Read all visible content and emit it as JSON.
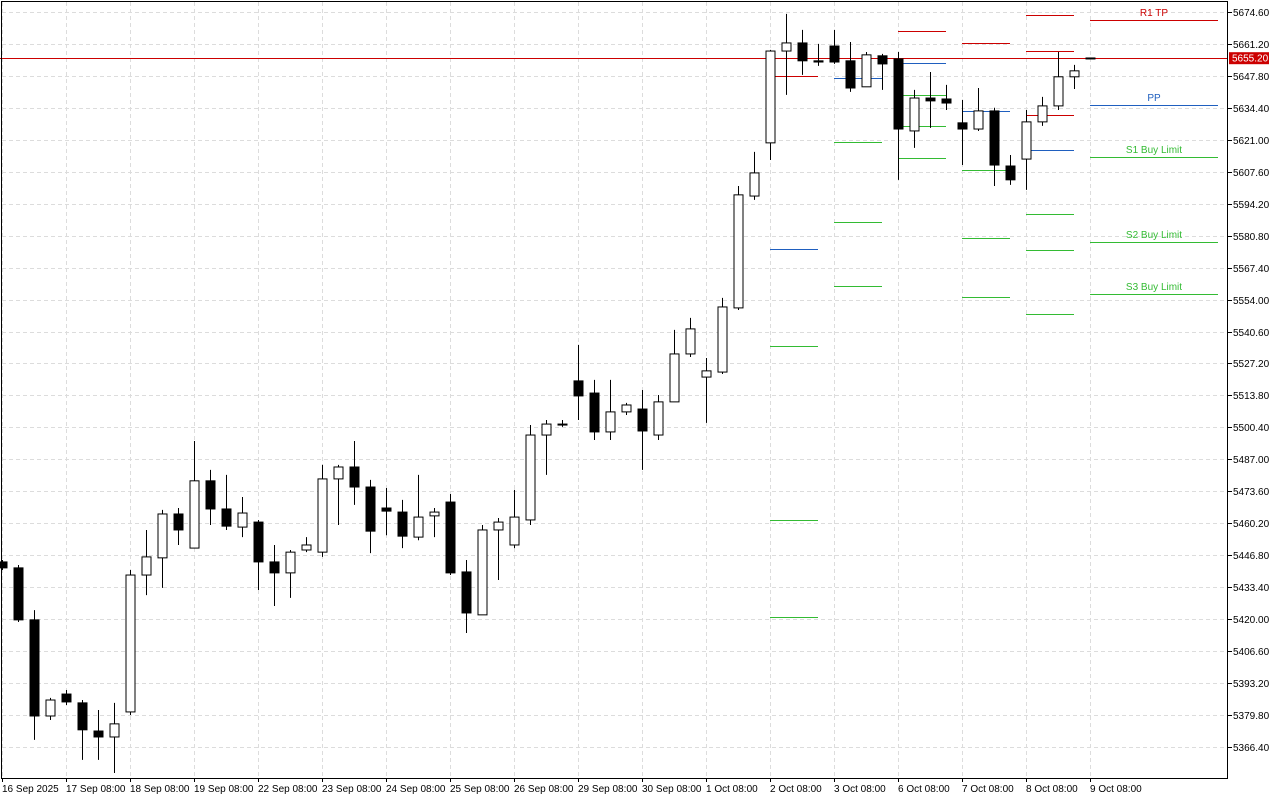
{
  "chart_data": {
    "type": "candlestick",
    "categories": [
      "16 Sep 2025",
      null,
      null,
      null,
      "17 Sep 08:00",
      null,
      null,
      null,
      "18 Sep 08:00",
      null,
      null,
      null,
      "19 Sep 08:00",
      null,
      null,
      null,
      "22 Sep 08:00",
      null,
      null,
      null,
      "23 Sep 08:00",
      null,
      null,
      null,
      "24 Sep 08:00",
      null,
      null,
      null,
      "25 Sep 08:00",
      null,
      null,
      null,
      "26 Sep 08:00",
      null,
      null,
      null,
      "29 Sep 08:00",
      null,
      null,
      null,
      "30 Sep 08:00",
      null,
      null,
      null,
      "1 Oct 08:00",
      null,
      null,
      null,
      "2 Oct 08:00",
      null,
      null,
      null,
      "3 Oct 08:00",
      null,
      null,
      null,
      "6 Oct 08:00",
      null,
      null,
      null,
      "7 Oct 08:00",
      null,
      null,
      null,
      "8 Oct 08:00",
      null,
      null,
      null,
      "9 Oct 08:00"
    ],
    "open": [
      5444.0,
      5441.5,
      5419.7,
      5379.4,
      5388.6,
      5384.9,
      5373.1,
      5370.6,
      5381.1,
      5438.5,
      5445.7,
      5464.1,
      5449.8,
      5478.0,
      5466.2,
      5458.6,
      5460.7,
      5444.0,
      5439.4,
      5449.0,
      5448.1,
      5478.8,
      5483.8,
      5475.4,
      5466.6,
      5464.9,
      5454.4,
      5463.3,
      5469.1,
      5439.8,
      5421.8,
      5457.4,
      5451.1,
      5461.6,
      5497.2,
      5501.4,
      5519.9,
      5514.8,
      5498.5,
      5506.9,
      5508.1,
      5497.2,
      5511.1,
      5531.2,
      5521.5,
      5523.6,
      5550.5,
      5597.4,
      5619.7,
      5658.2,
      5661.6,
      5654.1,
      5660.3,
      5654.1,
      5643.2,
      5656.2,
      5654.9,
      5624.7,
      5638.5,
      5638.1,
      5628.1,
      5625.5,
      5633.1,
      5610.0,
      5612.9,
      5628.5,
      5635.2,
      5647.4,
      5655.3
    ],
    "high": [
      5444.8,
      5442.7,
      5423.8,
      5387.0,
      5390.3,
      5386.1,
      5381.9,
      5384.9,
      5440.6,
      5457.4,
      5465.8,
      5466.6,
      5494.7,
      5482.6,
      5480.5,
      5471.2,
      5461.6,
      5451.1,
      5449.0,
      5454.4,
      5484.7,
      5484.7,
      5494.7,
      5478.4,
      5475.0,
      5470.0,
      5480.5,
      5466.6,
      5472.5,
      5444.8,
      5459.5,
      5462.4,
      5474.2,
      5501.4,
      5503.5,
      5503.5,
      5535.0,
      5520.3,
      5520.3,
      5510.7,
      5516.1,
      5514.0,
      5541.3,
      5546.3,
      5529.5,
      5554.7,
      5601.6,
      5615.9,
      5658.7,
      5673.8,
      5667.1,
      5661.2,
      5667.1,
      5662.0,
      5657.8,
      5657.0,
      5657.8,
      5641.9,
      5649.4,
      5644.0,
      5637.7,
      5642.7,
      5634.4,
      5614.6,
      5633.5,
      5639.0,
      5657.8,
      5652.4,
      5655.3
    ],
    "low": [
      5440.6,
      5418.8,
      5369.4,
      5377.7,
      5384.0,
      5361.0,
      5361.0,
      5355.5,
      5379.8,
      5430.1,
      5433.1,
      5451.1,
      5449.8,
      5459.5,
      5457.4,
      5454.4,
      5432.2,
      5425.5,
      5428.9,
      5448.1,
      5446.1,
      5459.5,
      5467.9,
      5447.7,
      5455.2,
      5449.8,
      5453.1,
      5454.4,
      5438.5,
      5414.2,
      5421.8,
      5436.4,
      5449.8,
      5459.5,
      5480.5,
      5500.6,
      5503.5,
      5495.1,
      5495.1,
      5505.6,
      5482.6,
      5495.1,
      5511.1,
      5529.9,
      5502.3,
      5522.8,
      5549.6,
      5595.8,
      5612.5,
      5639.8,
      5648.2,
      5652.0,
      5652.8,
      5641.1,
      5643.2,
      5641.9,
      5604.2,
      5617.6,
      5626.0,
      5633.5,
      5610.4,
      5624.7,
      5601.6,
      5602.1,
      5600.0,
      5626.8,
      5633.5,
      5642.3,
      5654.9
    ],
    "close": [
      5441.5,
      5419.7,
      5379.4,
      5386.1,
      5385.3,
      5373.6,
      5370.6,
      5376.1,
      5438.5,
      5446.1,
      5464.1,
      5457.4,
      5478.0,
      5466.2,
      5459.0,
      5464.5,
      5444.0,
      5439.4,
      5448.1,
      5451.1,
      5478.8,
      5483.8,
      5475.4,
      5456.9,
      5465.3,
      5454.8,
      5462.8,
      5464.9,
      5439.4,
      5422.6,
      5457.4,
      5460.7,
      5462.8,
      5497.2,
      5501.8,
      5501.8,
      5513.6,
      5498.5,
      5506.9,
      5509.8,
      5498.9,
      5511.1,
      5531.2,
      5541.7,
      5524.1,
      5550.9,
      5597.9,
      5607.1,
      5658.2,
      5661.6,
      5654.1,
      5653.6,
      5653.6,
      5642.7,
      5656.6,
      5652.8,
      5625.5,
      5638.5,
      5637.3,
      5636.4,
      5625.5,
      5633.1,
      5610.4,
      5604.2,
      5628.5,
      5635.2,
      5647.4,
      5649.9,
      5655.2
    ],
    "up_color": "#ffffff",
    "down_color": "#000000",
    "ylim": [
      5353.4,
      5679.6
    ],
    "yticks": [
      {
        "value": 5674.6,
        "label": "5674.60"
      },
      {
        "value": 5661.2,
        "label": "5661.20"
      },
      {
        "value": 5647.8,
        "label": "5647.80"
      },
      {
        "value": 5634.4,
        "label": "5634.40"
      },
      {
        "value": 5621.0,
        "label": "5621.00"
      },
      {
        "value": 5607.6,
        "label": "5607.60"
      },
      {
        "value": 5594.2,
        "label": "5594.20"
      },
      {
        "value": 5580.8,
        "label": "5580.80"
      },
      {
        "value": 5567.4,
        "label": "5567.40"
      },
      {
        "value": 5554.0,
        "label": "5554.00"
      },
      {
        "value": 5540.6,
        "label": "5540.60"
      },
      {
        "value": 5527.2,
        "label": "5527.20"
      },
      {
        "value": 5513.8,
        "label": "5513.80"
      },
      {
        "value": 5500.4,
        "label": "5500.40"
      },
      {
        "value": 5487.0,
        "label": "5487.00"
      },
      {
        "value": 5473.6,
        "label": "5473.60"
      },
      {
        "value": 5460.2,
        "label": "5460.20"
      },
      {
        "value": 5446.8,
        "label": "5446.80"
      },
      {
        "value": 5433.4,
        "label": "5433.40"
      },
      {
        "value": 5420.0,
        "label": "5420.00"
      },
      {
        "value": 5406.6,
        "label": "5406.60"
      },
      {
        "value": 5393.2,
        "label": "5393.20"
      },
      {
        "value": 5379.8,
        "label": "5379.80"
      },
      {
        "value": 5366.4,
        "label": "5366.40"
      }
    ],
    "grid": true,
    "last_price": {
      "value": 5655.2,
      "label": "5655.20"
    },
    "last_price_color": "#cc0000",
    "levels": [
      {
        "name": "R1 TP",
        "color": "#cc0000",
        "values": [
          null,
          null,
          null,
          null,
          null,
          null,
          null,
          null,
          null,
          null,
          null,
          null,
          null,
          null,
          null,
          null,
          null,
          null,
          null,
          null,
          null,
          null,
          null,
          null,
          null,
          null,
          null,
          null,
          null,
          null,
          null,
          null,
          null,
          null,
          null,
          null,
          null,
          null,
          null,
          null,
          null,
          null,
          null,
          null,
          null,
          null,
          null,
          null,
          5647.8,
          null,
          null,
          null,
          null,
          null,
          null,
          null,
          5666.6,
          null,
          null,
          null,
          5661.6,
          null,
          null,
          null,
          5658.2,
          null,
          null,
          null,
          5671.2
        ]
      },
      {
        "name": "PP",
        "color": "#1f5fbf",
        "values": [
          null,
          null,
          null,
          null,
          null,
          null,
          null,
          null,
          null,
          null,
          null,
          null,
          null,
          null,
          null,
          null,
          null,
          null,
          null,
          null,
          null,
          null,
          null,
          null,
          null,
          null,
          null,
          null,
          null,
          null,
          null,
          null,
          null,
          null,
          null,
          null,
          null,
          null,
          null,
          null,
          null,
          null,
          null,
          null,
          null,
          null,
          null,
          null,
          5575.2,
          null,
          null,
          null,
          5646.9,
          null,
          null,
          null,
          5653.2,
          null,
          null,
          null,
          5633.1,
          null,
          null,
          null,
          5616.7,
          null,
          null,
          null,
          5635.6
        ]
      },
      {
        "name": "S1 Buy Limit",
        "color": "#33bb33",
        "values": [
          null,
          null,
          null,
          null,
          null,
          null,
          null,
          null,
          null,
          null,
          null,
          null,
          null,
          null,
          null,
          null,
          null,
          null,
          null,
          null,
          null,
          null,
          null,
          null,
          null,
          null,
          null,
          null,
          null,
          null,
          null,
          null,
          null,
          null,
          null,
          null,
          null,
          null,
          null,
          null,
          null,
          null,
          null,
          null,
          null,
          null,
          null,
          null,
          5534.6,
          null,
          null,
          null,
          5620.1,
          null,
          null,
          null,
          5639.8,
          null,
          null,
          null,
          5608.4,
          null,
          null,
          null,
          5589.9,
          null,
          null,
          null,
          5613.8
        ]
      },
      {
        "name": "S2 Buy Limit",
        "color": "#33bb33",
        "values": [
          null,
          null,
          null,
          null,
          null,
          null,
          null,
          null,
          null,
          null,
          null,
          null,
          null,
          null,
          null,
          null,
          null,
          null,
          null,
          null,
          null,
          null,
          null,
          null,
          null,
          null,
          null,
          null,
          null,
          null,
          null,
          null,
          null,
          null,
          null,
          null,
          null,
          null,
          null,
          null,
          null,
          null,
          null,
          null,
          null,
          null,
          null,
          null,
          5461.6,
          null,
          null,
          null,
          5586.5,
          null,
          null,
          null,
          5626.8,
          null,
          null,
          null,
          5579.8,
          null,
          null,
          null,
          5574.8,
          null,
          null,
          null,
          5578.2
        ]
      },
      {
        "name": "S3 Buy Limit",
        "color": "#33bb33",
        "values": [
          null,
          null,
          null,
          null,
          null,
          null,
          null,
          null,
          null,
          null,
          null,
          null,
          null,
          null,
          null,
          null,
          null,
          null,
          null,
          null,
          null,
          null,
          null,
          null,
          null,
          null,
          null,
          null,
          null,
          null,
          null,
          null,
          null,
          null,
          null,
          null,
          null,
          null,
          null,
          null,
          null,
          null,
          null,
          null,
          null,
          null,
          null,
          null,
          5420.9,
          null,
          null,
          null,
          5559.7,
          null,
          null,
          null,
          5613.4,
          null,
          null,
          null,
          5555.1,
          null,
          null,
          null,
          5548.0,
          null,
          null,
          null,
          5556.4
        ]
      },
      {
        "color": "#cc0000",
        "values": [
          null,
          null,
          null,
          null,
          null,
          null,
          null,
          null,
          null,
          null,
          null,
          null,
          null,
          null,
          null,
          null,
          null,
          null,
          null,
          null,
          null,
          null,
          null,
          null,
          null,
          null,
          null,
          null,
          null,
          null,
          null,
          null,
          null,
          null,
          null,
          null,
          null,
          null,
          null,
          null,
          null,
          null,
          null,
          null,
          null,
          null,
          null,
          null,
          null,
          null,
          null,
          null,
          null,
          null,
          null,
          null,
          null,
          null,
          null,
          null,
          null,
          null,
          null,
          null,
          5673.3,
          null,
          null,
          null,
          null
        ]
      },
      {
        "color": "#cc0000",
        "values": [
          null,
          null,
          null,
          null,
          null,
          null,
          null,
          null,
          null,
          null,
          null,
          null,
          null,
          null,
          null,
          null,
          null,
          null,
          null,
          null,
          null,
          null,
          null,
          null,
          null,
          null,
          null,
          null,
          null,
          null,
          null,
          null,
          null,
          null,
          null,
          null,
          null,
          null,
          null,
          null,
          null,
          null,
          null,
          null,
          null,
          null,
          null,
          null,
          null,
          null,
          null,
          null,
          null,
          null,
          null,
          null,
          null,
          null,
          null,
          null,
          null,
          null,
          null,
          null,
          5631.4,
          null,
          null,
          null,
          null
        ]
      }
    ]
  }
}
